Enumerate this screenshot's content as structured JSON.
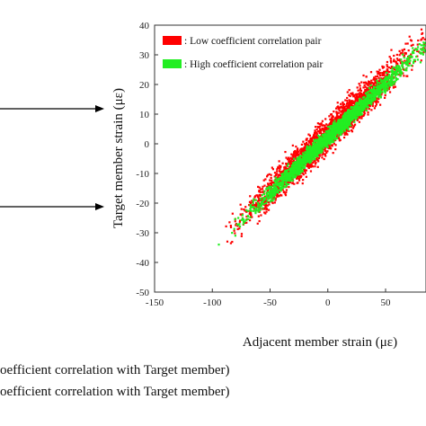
{
  "chart_data": {
    "type": "scatter",
    "xlabel": "Adjacent member strain (με)",
    "ylabel": "Target member strain (με)",
    "xlim": [
      -150,
      85
    ],
    "ylim": [
      -50,
      40
    ],
    "xticks": [
      -150,
      -100,
      -50,
      0,
      50
    ],
    "yticks": [
      -50,
      -40,
      -30,
      -20,
      -10,
      0,
      10,
      20,
      30,
      40
    ],
    "grid": false,
    "legend_position": "top-left",
    "series": [
      {
        "name": ": Low coefficient correlation pair",
        "color": "#ff0000",
        "relation": "y ≈ 0.38·x + 3",
        "x_range": [
          -112,
          84
        ],
        "y_spread": 5.2
      },
      {
        "name": ": High coefficient correlation pair",
        "color": "#22ee22",
        "relation": "y ≈ 0.37·x + 2",
        "x_range": [
          -105,
          84
        ],
        "y_spread": 2.6
      }
    ]
  },
  "notes": [
    "oefficient correlation with Target member)",
    "oefficient correlation with Target member)"
  ]
}
